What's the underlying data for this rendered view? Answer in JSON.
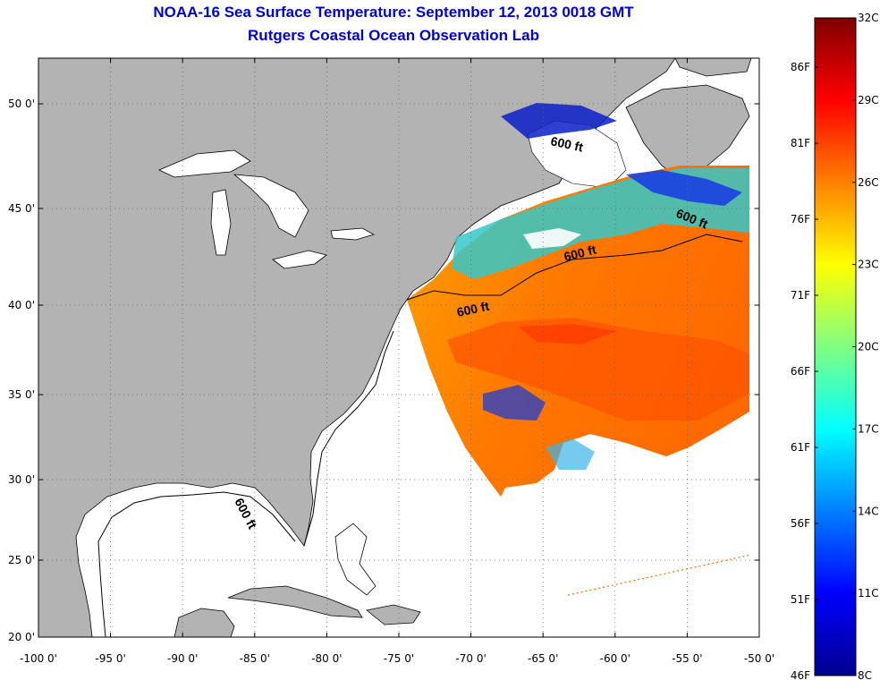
{
  "header": {
    "title": "NOAA-16 Sea Surface Temperature:  September 12, 2013 0018 GMT",
    "subtitle": "Rutgers Coastal Ocean Observation Lab"
  },
  "map": {
    "lat_ticks": [
      "50 0'",
      "45 0'",
      "40 0'",
      "35 0'",
      "30 0'",
      "25 0'",
      "20 0'"
    ],
    "lon_ticks": [
      "-100 0'",
      "-95 0'",
      "-90 0'",
      "-85 0'",
      "-80 0'",
      "-75 0'",
      "-70 0'",
      "-65 0'",
      "-60 0'",
      "-55 0'",
      "-50 0'"
    ],
    "contour_labels": [
      "600 ft",
      "600 ft",
      "600 ft",
      "600 ft",
      "600 ft"
    ],
    "colors": {
      "land": "#b3b3b3",
      "ocean": "#ffffff",
      "grid": "#555555"
    }
  },
  "colorbar": {
    "celsius": [
      "32C",
      "29C",
      "26C",
      "23C",
      "20C",
      "17C",
      "14C",
      "11C",
      "8C"
    ],
    "fahrenheit": [
      "86F",
      "81F",
      "76F",
      "71F",
      "66F",
      "61F",
      "56F",
      "51F",
      "46F"
    ],
    "colors": [
      "#7f0000",
      "#ff0000",
      "#ff8000",
      "#ffff00",
      "#80ff80",
      "#00ffff",
      "#0080ff",
      "#0000ff",
      "#00008f"
    ]
  }
}
